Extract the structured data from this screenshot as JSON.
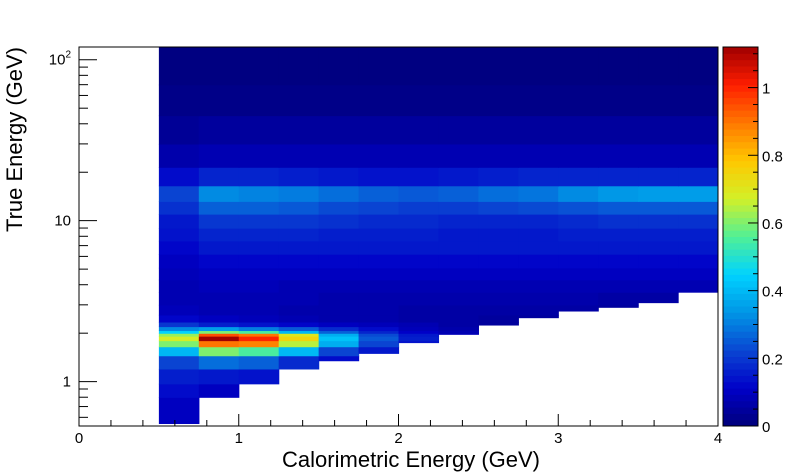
{
  "chart_data": {
    "type": "heatmap",
    "xlabel": "Calorimetric Energy (GeV)",
    "ylabel": "True Energy (GeV)",
    "x_range": [
      0,
      4
    ],
    "y_range": [
      0.53,
      120
    ],
    "y_scale": "log",
    "x_ticks": [
      "0",
      "1",
      "2",
      "3",
      "4"
    ],
    "x_tick_values": [
      0,
      1,
      2,
      3,
      4
    ],
    "y_ticks": [
      "1",
      "10",
      "10^2"
    ],
    "y_tick_values": [
      1,
      10,
      100
    ],
    "colorbar": {
      "range": [
        0,
        1.12
      ],
      "ticks": [
        "0",
        "0.2",
        "0.4",
        "0.6",
        "0.8",
        "1"
      ],
      "tick_values": [
        0,
        0.2,
        0.4,
        0.6,
        0.8,
        1.0
      ],
      "palette": [
        "#00007a",
        "#0000c8",
        "#0a46d2",
        "#0096e6",
        "#00d2ff",
        "#50f096",
        "#d2f028",
        "#ffc800",
        "#ff7800",
        "#ff1e00",
        "#a00000"
      ]
    },
    "x_bins": [
      0.5,
      0.75,
      1.0,
      1.25,
      1.5,
      1.75,
      2.0,
      2.25,
      2.5,
      2.75,
      3.0,
      3.25,
      3.5,
      3.75,
      4.0
    ],
    "y_bins": [
      0.55,
      0.8,
      0.97,
      1.2,
      1.45,
      1.65,
      1.8,
      1.92,
      2.0,
      2.08,
      2.2,
      2.35,
      2.6,
      3.0,
      3.6,
      4.3,
      5.1,
      6.2,
      7.5,
      9.0,
      11.0,
      13.2,
      16.5,
      21.5,
      30.0,
      45.0,
      70.0,
      120.0
    ],
    "y_min_per_column": [
      0.55,
      0.8,
      0.97,
      1.2,
      1.35,
      1.5,
      1.75,
      1.97,
      2.25,
      2.5,
      2.75,
      2.9,
      3.1,
      3.6
    ],
    "z": [
      [
        0.1,
        0.08,
        0.07,
        0.06,
        0.05,
        0.04,
        0.03,
        0.02,
        0.02,
        0.01,
        0.01,
        0.01,
        0.01,
        0.01
      ],
      [
        0.13,
        0.1,
        0.09,
        0.08,
        0.06,
        0.05,
        0.04,
        0.03,
        0.02,
        0.02,
        0.01,
        0.01,
        0.01,
        0.01
      ],
      [
        0.16,
        0.15,
        0.14,
        0.11,
        0.08,
        0.06,
        0.05,
        0.04,
        0.03,
        0.02,
        0.02,
        0.01,
        0.01,
        0.01
      ],
      [
        0.22,
        0.28,
        0.26,
        0.18,
        0.13,
        0.09,
        0.07,
        0.05,
        0.04,
        0.03,
        0.02,
        0.02,
        0.01,
        0.01
      ],
      [
        0.4,
        0.6,
        0.55,
        0.4,
        0.22,
        0.15,
        0.1,
        0.07,
        0.05,
        0.04,
        0.03,
        0.02,
        0.02,
        0.01
      ],
      [
        0.6,
        0.9,
        0.88,
        0.65,
        0.38,
        0.22,
        0.14,
        0.09,
        0.06,
        0.05,
        0.04,
        0.03,
        0.02,
        0.02
      ],
      [
        0.68,
        1.12,
        1.0,
        0.75,
        0.42,
        0.25,
        0.16,
        0.1,
        0.07,
        0.05,
        0.04,
        0.03,
        0.02,
        0.02
      ],
      [
        0.62,
        0.95,
        0.9,
        0.7,
        0.38,
        0.23,
        0.15,
        0.09,
        0.07,
        0.05,
        0.04,
        0.03,
        0.02,
        0.02
      ],
      [
        0.45,
        0.6,
        0.55,
        0.4,
        0.26,
        0.17,
        0.11,
        0.08,
        0.06,
        0.05,
        0.04,
        0.03,
        0.02,
        0.02
      ],
      [
        0.32,
        0.35,
        0.3,
        0.25,
        0.18,
        0.13,
        0.09,
        0.07,
        0.05,
        0.05,
        0.04,
        0.03,
        0.03,
        0.02
      ],
      [
        0.2,
        0.16,
        0.14,
        0.12,
        0.1,
        0.09,
        0.08,
        0.06,
        0.05,
        0.05,
        0.04,
        0.04,
        0.03,
        0.03
      ],
      [
        0.12,
        0.1,
        0.09,
        0.08,
        0.07,
        0.07,
        0.06,
        0.06,
        0.05,
        0.05,
        0.05,
        0.04,
        0.04,
        0.04
      ],
      [
        0.09,
        0.08,
        0.08,
        0.07,
        0.07,
        0.07,
        0.06,
        0.06,
        0.06,
        0.06,
        0.06,
        0.05,
        0.05,
        0.05
      ],
      [
        0.08,
        0.08,
        0.08,
        0.08,
        0.07,
        0.07,
        0.07,
        0.07,
        0.07,
        0.07,
        0.07,
        0.06,
        0.06,
        0.06
      ],
      [
        0.08,
        0.09,
        0.09,
        0.08,
        0.08,
        0.08,
        0.08,
        0.08,
        0.08,
        0.08,
        0.08,
        0.08,
        0.08,
        0.08
      ],
      [
        0.09,
        0.1,
        0.1,
        0.1,
        0.1,
        0.1,
        0.1,
        0.1,
        0.1,
        0.1,
        0.1,
        0.1,
        0.1,
        0.1
      ],
      [
        0.1,
        0.12,
        0.12,
        0.12,
        0.12,
        0.12,
        0.12,
        0.12,
        0.12,
        0.12,
        0.12,
        0.12,
        0.12,
        0.12
      ],
      [
        0.12,
        0.15,
        0.15,
        0.15,
        0.15,
        0.15,
        0.15,
        0.15,
        0.15,
        0.15,
        0.15,
        0.15,
        0.15,
        0.15
      ],
      [
        0.14,
        0.17,
        0.17,
        0.17,
        0.16,
        0.16,
        0.16,
        0.15,
        0.15,
        0.15,
        0.16,
        0.16,
        0.16,
        0.16
      ],
      [
        0.15,
        0.2,
        0.2,
        0.2,
        0.19,
        0.18,
        0.18,
        0.17,
        0.17,
        0.17,
        0.18,
        0.19,
        0.19,
        0.19
      ],
      [
        0.19,
        0.26,
        0.26,
        0.25,
        0.23,
        0.22,
        0.21,
        0.21,
        0.22,
        0.23,
        0.24,
        0.25,
        0.25,
        0.25
      ],
      [
        0.22,
        0.32,
        0.31,
        0.3,
        0.28,
        0.26,
        0.25,
        0.26,
        0.28,
        0.29,
        0.32,
        0.34,
        0.35,
        0.35
      ],
      [
        0.13,
        0.17,
        0.17,
        0.16,
        0.15,
        0.14,
        0.14,
        0.15,
        0.16,
        0.17,
        0.17,
        0.17,
        0.17,
        0.17
      ],
      [
        0.07,
        0.08,
        0.08,
        0.08,
        0.08,
        0.08,
        0.08,
        0.08,
        0.08,
        0.08,
        0.08,
        0.08,
        0.08,
        0.08
      ],
      [
        0.04,
        0.05,
        0.05,
        0.05,
        0.05,
        0.05,
        0.05,
        0.05,
        0.05,
        0.05,
        0.05,
        0.05,
        0.05,
        0.05
      ],
      [
        0.02,
        0.02,
        0.02,
        0.02,
        0.02,
        0.02,
        0.02,
        0.02,
        0.02,
        0.02,
        0.02,
        0.02,
        0.02,
        0.02
      ],
      [
        0.01,
        0.01,
        0.01,
        0.01,
        0.01,
        0.01,
        0.01,
        0.01,
        0.01,
        0.01,
        0.01,
        0.01,
        0.01,
        0.01
      ]
    ]
  }
}
